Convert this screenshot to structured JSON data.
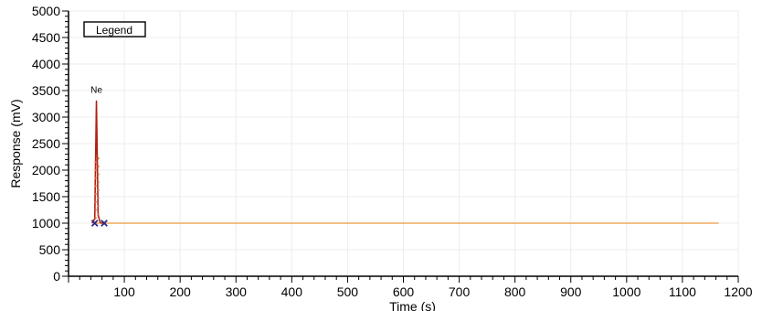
{
  "chart_data": {
    "type": "line",
    "xlabel": "Time (s)",
    "ylabel": "Response (mV)",
    "xlim": [
      0,
      1200
    ],
    "ylim": [
      0,
      5000
    ],
    "x_ticks": [
      100,
      200,
      300,
      400,
      500,
      600,
      700,
      800,
      900,
      1000,
      1100,
      1200
    ],
    "y_ticks": [
      0,
      500,
      1000,
      1500,
      2000,
      2500,
      3000,
      3500,
      4000,
      4500,
      5000
    ],
    "legend_label": "Legend",
    "legend_position": "top-left",
    "grid": true,
    "series": [
      {
        "color": "#f0a860",
        "x": [
          48,
          1165
        ],
        "y": [
          1000,
          1000
        ]
      },
      {
        "color": "#b02010",
        "x": [
          42,
          47,
          50,
          53,
          57,
          62
        ],
        "y": [
          1000,
          1080,
          3300,
          1150,
          1010,
          1000
        ]
      }
    ],
    "peak_markers": [
      {
        "x": 47,
        "y": 1000
      },
      {
        "x": 64,
        "y": 1000
      }
    ],
    "annotations": [
      {
        "text": "Ne",
        "x": 50,
        "y": 3300
      }
    ],
    "colors": {
      "baseline": "#f0a860",
      "peak": "#b02010",
      "marker": "#2a2a8a",
      "grid": "#ececec"
    }
  }
}
